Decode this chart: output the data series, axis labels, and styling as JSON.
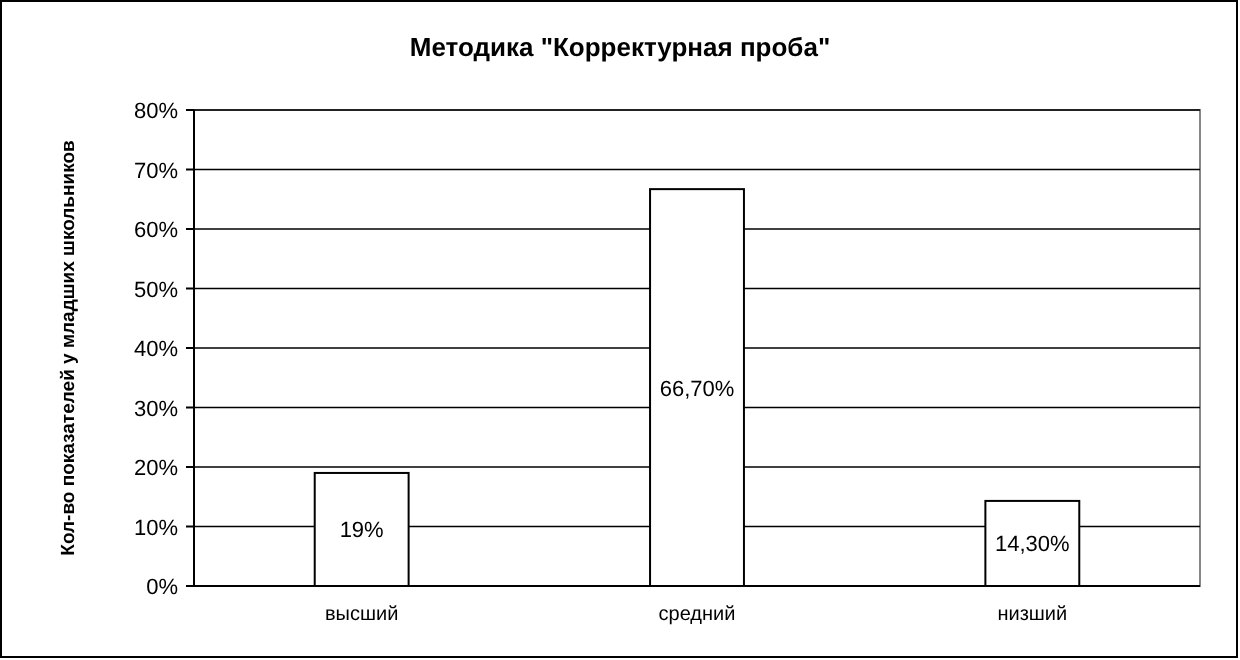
{
  "chart_data": {
    "type": "bar",
    "title": "Методика \"Корректурная проба\"",
    "ylabel": "Кол-во показателей у младших школьников",
    "categories": [
      "высший",
      "средний",
      "низший"
    ],
    "values": [
      19,
      66.7,
      14.3
    ],
    "value_labels": [
      "19%",
      "66,70%",
      "14,30%"
    ],
    "color": "#ffffff",
    "ylim": [
      0,
      80
    ],
    "yticks": [
      {
        "value": 0,
        "label": "0%"
      },
      {
        "value": 10,
        "label": "10%"
      },
      {
        "value": 20,
        "label": "20%"
      },
      {
        "value": 30,
        "label": "30%"
      },
      {
        "value": 40,
        "label": "40%"
      },
      {
        "value": 50,
        "label": "50%"
      },
      {
        "value": 60,
        "label": "60%"
      },
      {
        "value": 70,
        "label": "70%"
      },
      {
        "value": 80,
        "label": "80%"
      }
    ],
    "grid": "y"
  }
}
